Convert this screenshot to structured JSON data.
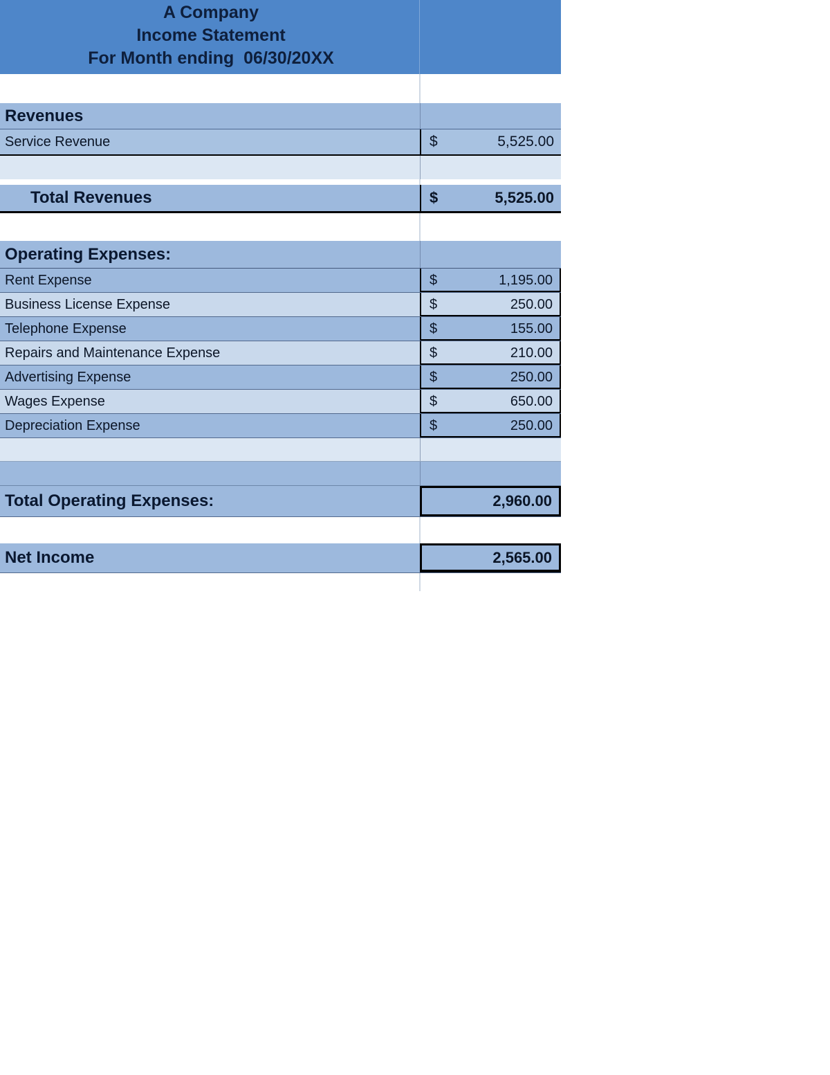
{
  "header": {
    "company": "A Company",
    "title": "Income Statement",
    "period": "For Month ending  06/30/20XX"
  },
  "revenues": {
    "title": "Revenues",
    "items": [
      {
        "label": "Service Revenue",
        "currency": "$",
        "amount": "5,525.00"
      }
    ],
    "total_label": "Total Revenues",
    "total_currency": "$",
    "total_amount": "5,525.00"
  },
  "operating_expenses": {
    "title": "Operating Expenses:",
    "items": [
      {
        "label": "Rent Expense",
        "currency": "$",
        "amount": "1,195.00"
      },
      {
        "label": "Business License Expense",
        "currency": "$",
        "amount": "250.00"
      },
      {
        "label": "Telephone Expense",
        "currency": "$",
        "amount": "155.00"
      },
      {
        "label": "Repairs and Maintenance Expense",
        "currency": "$",
        "amount": "210.00"
      },
      {
        "label": "Advertising Expense",
        "currency": "$",
        "amount": "250.00"
      },
      {
        "label": "Wages Expense",
        "currency": "$",
        "amount": "650.00"
      },
      {
        "label": "Depreciation Expense",
        "currency": "$",
        "amount": "250.00"
      }
    ],
    "total_label": "Total Operating Expenses:",
    "total_amount": "2,960.00"
  },
  "net_income": {
    "label": "Net Income",
    "amount": "2,565.00"
  },
  "colors": {
    "banner_blue": "#4e86c9",
    "row_medium_blue": "#9db9dd",
    "row_light_blue": "#c9d9ec",
    "row_pale_blue": "#dce7f3",
    "header_text": "#0e1f3c"
  }
}
